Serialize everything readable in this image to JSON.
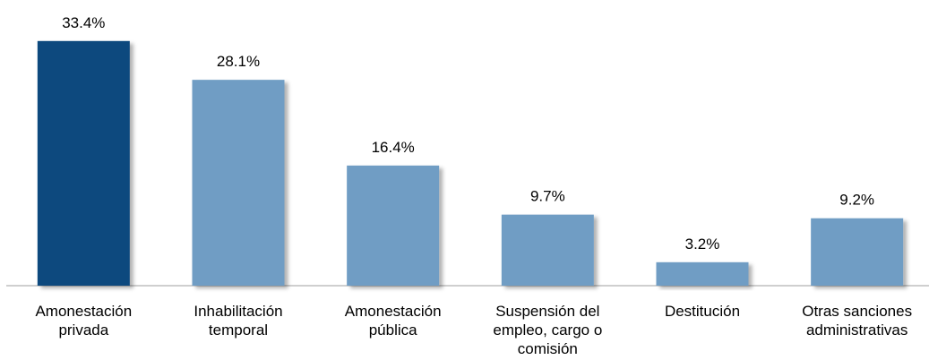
{
  "chart_data": {
    "type": "bar",
    "categories": [
      "Amonestación\nprivada",
      "Inhabilitación\ntemporal",
      "Amonestación\npública",
      "Suspensión del\nempleo, cargo o\ncomisión",
      "Destitución",
      "Otras sanciones\nadministrativas"
    ],
    "values": [
      33.4,
      28.1,
      16.4,
      9.7,
      3.2,
      9.2
    ],
    "value_labels": [
      "33.4%",
      "28.1%",
      "16.4%",
      "9.7%",
      "3.2%",
      "9.2%"
    ],
    "colors": [
      "#0e497e",
      "#6f9dc4",
      "#6f9dc4",
      "#6f9dc4",
      "#6f9dc4",
      "#6f9dc4"
    ],
    "ylim": [
      0,
      39
    ]
  }
}
